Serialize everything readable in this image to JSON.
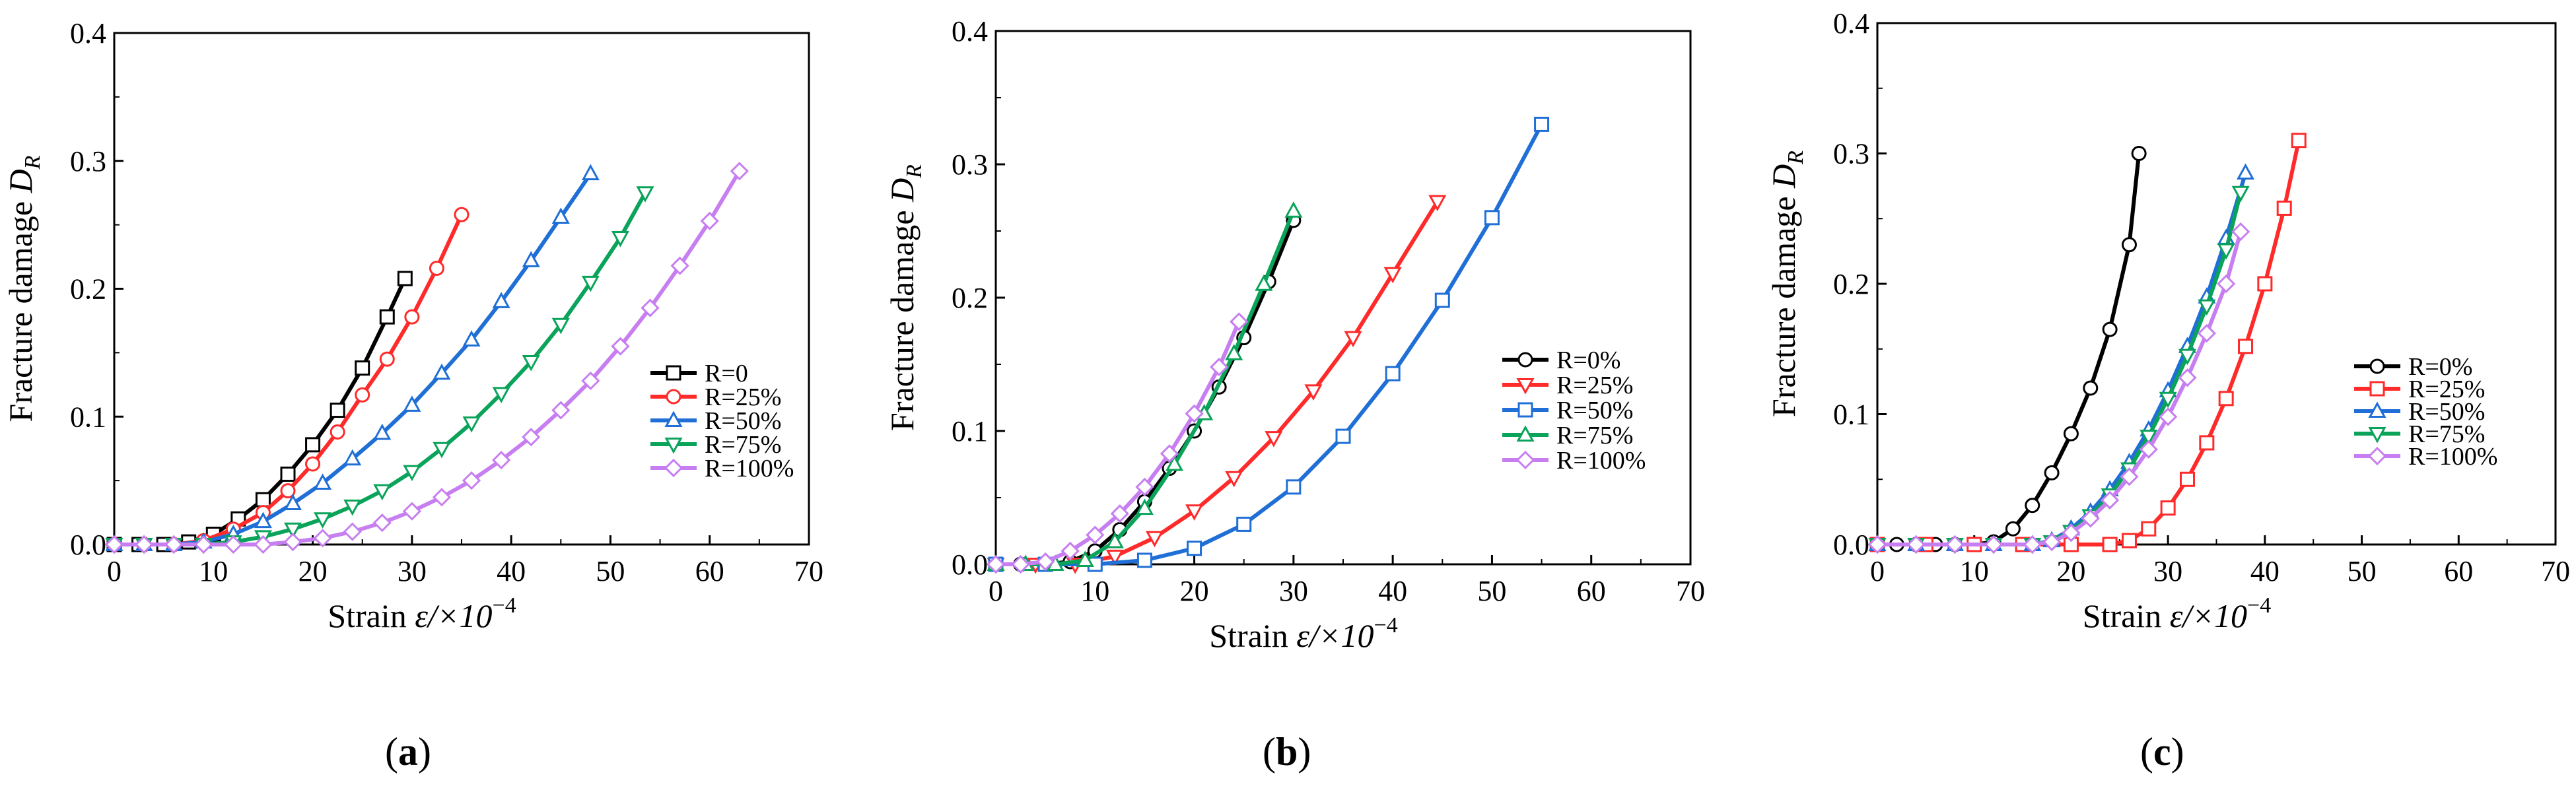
{
  "chart_data": [
    {
      "type": "line",
      "panel_label": "a",
      "xlabel": "Strain",
      "xlabel_symbol": "ε/×10",
      "xlabel_exponent": "−4",
      "ylabel": "Fracture damage",
      "ylabel_symbol": "D",
      "ylabel_subscript": "R",
      "xlim": [
        0,
        70
      ],
      "ylim": [
        0,
        0.4
      ],
      "xticks": [
        "0",
        "10",
        "20",
        "30",
        "40",
        "50",
        "60",
        "70"
      ],
      "yticks": [
        "0.0",
        "0.1",
        "0.2",
        "0.3",
        "0.4"
      ],
      "grid": false,
      "legend_position": "lower-right",
      "series": [
        {
          "name": "R=0",
          "color": "#000000",
          "marker": "square",
          "x": [
            0,
            2.5,
            5,
            7.5,
            10,
            12.5,
            15,
            17.5,
            20,
            22.5,
            25,
            27.5,
            29.3
          ],
          "y": [
            0,
            0,
            0,
            0.002,
            0.008,
            0.02,
            0.035,
            0.055,
            0.078,
            0.105,
            0.138,
            0.178,
            0.208
          ]
        },
        {
          "name": "R=25%",
          "color": "#ff2a2a",
          "marker": "circle",
          "x": [
            0,
            3,
            6,
            9,
            12,
            15,
            17.5,
            20,
            22.5,
            25,
            27.5,
            30,
            32.5,
            35
          ],
          "y": [
            0,
            0,
            0,
            0.003,
            0.012,
            0.025,
            0.042,
            0.063,
            0.088,
            0.117,
            0.145,
            0.178,
            0.216,
            0.258
          ]
        },
        {
          "name": "R=50%",
          "color": "#1f6fd6",
          "marker": "triangle-up",
          "x": [
            0,
            3,
            6,
            9,
            12,
            15,
            18,
            21,
            24,
            27,
            30,
            33,
            36,
            39,
            42,
            45,
            48
          ],
          "y": [
            0,
            0,
            0,
            0.002,
            0.008,
            0.018,
            0.032,
            0.048,
            0.067,
            0.087,
            0.109,
            0.134,
            0.16,
            0.19,
            0.222,
            0.256,
            0.29
          ]
        },
        {
          "name": "R=75%",
          "color": "#0aa35a",
          "marker": "triangle-down",
          "x": [
            0,
            3,
            6,
            9,
            12,
            15,
            18,
            21,
            24,
            27,
            30,
            33,
            36,
            39,
            42,
            45,
            48,
            51,
            53.5
          ],
          "y": [
            0,
            0,
            0,
            0,
            0.002,
            0.006,
            0.012,
            0.02,
            0.03,
            0.042,
            0.057,
            0.075,
            0.095,
            0.118,
            0.143,
            0.172,
            0.205,
            0.24,
            0.275
          ]
        },
        {
          "name": "R=100%",
          "color": "#c77ef0",
          "marker": "diamond",
          "x": [
            0,
            3,
            6,
            9,
            12,
            15,
            18,
            21,
            24,
            27,
            30,
            33,
            36,
            39,
            42,
            45,
            48,
            51,
            54,
            57,
            60,
            63
          ],
          "y": [
            0,
            0,
            0,
            0,
            0,
            0,
            0.002,
            0.005,
            0.01,
            0.017,
            0.026,
            0.037,
            0.05,
            0.066,
            0.084,
            0.105,
            0.128,
            0.155,
            0.185,
            0.218,
            0.253,
            0.292
          ]
        }
      ]
    },
    {
      "type": "line",
      "panel_label": "b",
      "xlabel": "Strain",
      "xlabel_symbol": "ε/×10",
      "xlabel_exponent": "−4",
      "ylabel": "Fracture damage",
      "ylabel_symbol": "D",
      "ylabel_subscript": "R",
      "xlim": [
        0,
        70
      ],
      "ylim": [
        0,
        0.4
      ],
      "xticks": [
        "0",
        "10",
        "20",
        "30",
        "40",
        "50",
        "60",
        "70"
      ],
      "yticks": [
        "0.0",
        "0.1",
        "0.2",
        "0.3",
        "0.4"
      ],
      "grid": false,
      "legend_position": "center-right",
      "series": [
        {
          "name": "R=0%",
          "color": "#000000",
          "marker": "circle",
          "x": [
            0,
            2.5,
            5,
            7.5,
            10,
            12.5,
            15,
            17.5,
            20,
            22.5,
            25,
            27.5,
            30
          ],
          "y": [
            0,
            0,
            0,
            0.002,
            0.01,
            0.026,
            0.047,
            0.072,
            0.1,
            0.133,
            0.17,
            0.212,
            0.258
          ]
        },
        {
          "name": "R=25%",
          "color": "#ff2a2a",
          "marker": "triangle-down",
          "x": [
            0,
            4,
            8,
            12,
            16,
            20,
            24,
            28,
            32,
            36,
            40,
            44.5
          ],
          "y": [
            0,
            0,
            0,
            0.006,
            0.02,
            0.04,
            0.065,
            0.095,
            0.13,
            0.17,
            0.218,
            0.272
          ]
        },
        {
          "name": "R=50%",
          "color": "#1f6fd6",
          "marker": "square",
          "x": [
            0,
            5,
            10,
            15,
            20,
            25,
            30,
            35,
            40,
            45,
            50,
            55
          ],
          "y": [
            0,
            0,
            0,
            0.003,
            0.012,
            0.03,
            0.058,
            0.096,
            0.143,
            0.198,
            0.26,
            0.33
          ]
        },
        {
          "name": "R=75%",
          "color": "#0aa35a",
          "marker": "triangle-up",
          "x": [
            0,
            3,
            6,
            9,
            12,
            15,
            18,
            21,
            24,
            27,
            30
          ],
          "y": [
            0,
            0,
            0,
            0.003,
            0.017,
            0.042,
            0.075,
            0.113,
            0.158,
            0.21,
            0.265
          ]
        },
        {
          "name": "R=100%",
          "color": "#c77ef0",
          "marker": "diamond",
          "x": [
            0,
            2.5,
            5,
            7.5,
            10,
            12.5,
            15,
            17.5,
            20,
            22.5,
            24.5
          ],
          "y": [
            0,
            0,
            0.002,
            0.01,
            0.022,
            0.038,
            0.058,
            0.083,
            0.113,
            0.148,
            0.182
          ]
        }
      ]
    },
    {
      "type": "line",
      "panel_label": "c",
      "xlabel": "Strain",
      "xlabel_symbol": "ε/×10",
      "xlabel_exponent": "−4",
      "ylabel": "Fracture damage",
      "ylabel_symbol": "D",
      "ylabel_subscript": "R",
      "xlim": [
        0,
        70
      ],
      "ylim": [
        0,
        0.4
      ],
      "xticks": [
        "0",
        "10",
        "20",
        "30",
        "40",
        "50",
        "60",
        "70"
      ],
      "yticks": [
        "0.0",
        "0.1",
        "0.2",
        "0.3",
        "0.4"
      ],
      "grid": false,
      "legend_position": "center-right",
      "series": [
        {
          "name": "R=0%",
          "color": "#000000",
          "marker": "circle",
          "x": [
            0,
            2,
            4,
            6,
            8,
            10,
            12,
            14,
            16,
            18,
            20,
            22,
            24,
            26,
            27
          ],
          "y": [
            0,
            0,
            0,
            0,
            0,
            0,
            0.002,
            0.012,
            0.03,
            0.055,
            0.085,
            0.12,
            0.165,
            0.23,
            0.3
          ]
        },
        {
          "name": "R=25%",
          "color": "#ff2a2a",
          "marker": "square",
          "x": [
            0,
            5,
            10,
            15,
            20,
            24,
            26,
            28,
            30,
            32,
            34,
            36,
            38,
            40,
            42,
            43.5
          ],
          "y": [
            0,
            0,
            0,
            0,
            0,
            0,
            0.003,
            0.012,
            0.028,
            0.05,
            0.078,
            0.112,
            0.152,
            0.2,
            0.258,
            0.31
          ]
        },
        {
          "name": "R=50%",
          "color": "#1f6fd6",
          "marker": "triangle-up",
          "x": [
            0,
            4,
            8,
            12,
            16,
            18,
            20,
            22,
            24,
            26,
            28,
            30,
            32,
            34,
            36,
            38
          ],
          "y": [
            0,
            0,
            0,
            0,
            0,
            0.003,
            0.012,
            0.025,
            0.042,
            0.063,
            0.088,
            0.118,
            0.152,
            0.19,
            0.235,
            0.285
          ]
        },
        {
          "name": "R=75%",
          "color": "#0aa35a",
          "marker": "triangle-down",
          "x": [
            0,
            4,
            8,
            12,
            16,
            18,
            20,
            22,
            24,
            26,
            28,
            30,
            32,
            34,
            36,
            37.5
          ],
          "y": [
            0,
            0,
            0,
            0,
            0,
            0.002,
            0.01,
            0.022,
            0.038,
            0.058,
            0.083,
            0.112,
            0.145,
            0.183,
            0.226,
            0.27
          ]
        },
        {
          "name": "R=100%",
          "color": "#c77ef0",
          "marker": "diamond",
          "x": [
            0,
            4,
            8,
            12,
            16,
            18,
            20,
            22,
            24,
            26,
            28,
            30,
            32,
            34,
            36,
            37.5
          ],
          "y": [
            0,
            0,
            0,
            0,
            0,
            0.002,
            0.009,
            0.02,
            0.034,
            0.052,
            0.073,
            0.098,
            0.128,
            0.162,
            0.2,
            0.24
          ]
        }
      ]
    }
  ]
}
